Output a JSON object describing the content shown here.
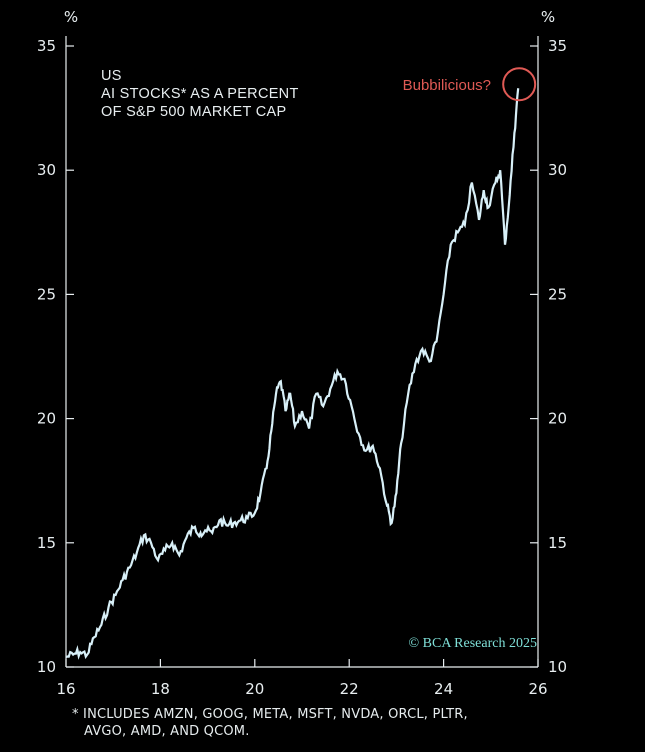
{
  "chart_data": {
    "type": "line",
    "title_lines": [
      "US",
      "AI STOCKS* AS A PERCENT",
      "OF S&P 500 MARKET CAP"
    ],
    "ylabel_left": "%",
    "ylabel_right": "%",
    "xlim": [
      2016,
      2026
    ],
    "ylim": [
      10,
      35
    ],
    "x_ticks": [
      16,
      18,
      20,
      22,
      24,
      26
    ],
    "y_ticks": [
      10,
      15,
      20,
      25,
      30,
      35
    ],
    "annotation": "Bubbilicious?",
    "source": "© BCA Research 2025",
    "series": [
      {
        "x": [
          2016.0,
          2016.15,
          2016.3,
          2016.45,
          2016.6,
          2016.75,
          2016.9,
          2017.05,
          2017.2,
          2017.35,
          2017.5,
          2017.65,
          2017.8,
          2017.95,
          2018.1,
          2018.25,
          2018.4,
          2018.55,
          2018.7,
          2018.85,
          2018.95,
          2019.1,
          2019.25,
          2019.4,
          2019.55,
          2019.7,
          2019.85,
          2020.0,
          2020.12,
          2020.25,
          2020.35,
          2020.45,
          2020.55,
          2020.65,
          2020.75,
          2020.85,
          2021.0,
          2021.15,
          2021.3,
          2021.45,
          2021.6,
          2021.75,
          2021.9,
          2022.05,
          2022.2,
          2022.35,
          2022.5,
          2022.65,
          2022.8,
          2022.9,
          2023.0,
          2023.1,
          2023.25,
          2023.4,
          2023.55,
          2023.7,
          2023.85,
          2024.0,
          2024.15,
          2024.3,
          2024.45,
          2024.6,
          2024.75,
          2024.85,
          2024.95,
          2025.1,
          2025.2,
          2025.3,
          2025.4,
          2025.5,
          2025.58
        ],
        "y": [
          10.4,
          10.5,
          10.6,
          10.5,
          11.2,
          11.7,
          12.4,
          12.9,
          13.5,
          14.0,
          14.6,
          15.3,
          15.0,
          14.3,
          14.7,
          15.0,
          14.5,
          15.2,
          15.6,
          15.4,
          15.5,
          15.4,
          15.9,
          15.7,
          15.8,
          15.9,
          16.0,
          16.2,
          17.0,
          18.0,
          19.5,
          21.0,
          21.5,
          20.3,
          21.0,
          19.7,
          20.3,
          19.6,
          21.0,
          20.5,
          21.2,
          21.9,
          21.6,
          20.5,
          19.4,
          18.7,
          18.9,
          18.0,
          16.5,
          15.8,
          17.0,
          19.0,
          21.0,
          22.2,
          22.8,
          22.3,
          23.1,
          25.0,
          27.0,
          27.5,
          27.8,
          29.5,
          28.0,
          29.2,
          28.5,
          29.5,
          30.0,
          27.0,
          29.0,
          31.5,
          33.3
        ]
      }
    ],
    "grid": false,
    "line_color": "#d8f0f8",
    "circle_color": "#e05a55",
    "source_color": "#7fe0d8"
  },
  "footnote": {
    "line1": "* INCLUDES AMZN, GOOG, META, MSFT, NVDA, ORCL, PLTR,",
    "line2": "AVGO, AMD, AND QCOM."
  }
}
